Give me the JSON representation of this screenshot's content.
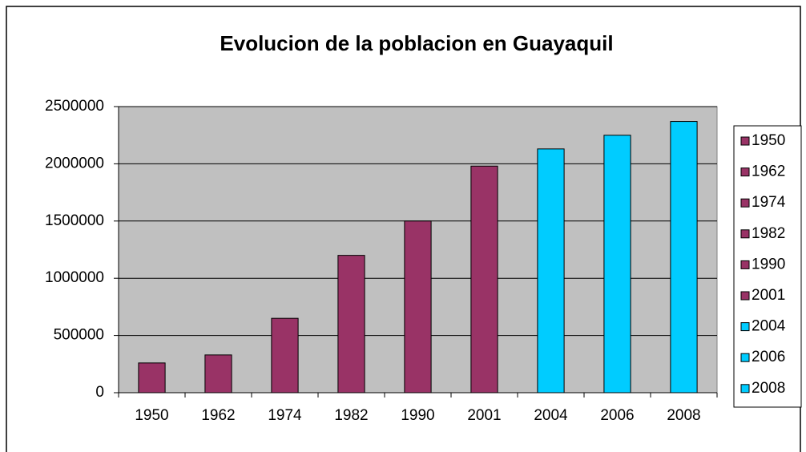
{
  "chart_data": {
    "type": "bar",
    "title": "Evolucion de la poblacion en Guayaquil",
    "categories": [
      "1950",
      "1962",
      "1974",
      "1982",
      "1990",
      "2001",
      "2004",
      "2006",
      "2008"
    ],
    "values": [
      260000,
      330000,
      650000,
      1200000,
      1500000,
      1980000,
      2130000,
      2250000,
      2370000
    ],
    "colors": [
      "#993366",
      "#993366",
      "#993366",
      "#993366",
      "#993366",
      "#993366",
      "#00ccff",
      "#00ccff",
      "#00ccff"
    ],
    "ylim": [
      0,
      2500000
    ],
    "yticks": [
      0,
      500000,
      1000000,
      1500000,
      2000000,
      2500000
    ],
    "grid": true,
    "legend": "right"
  }
}
